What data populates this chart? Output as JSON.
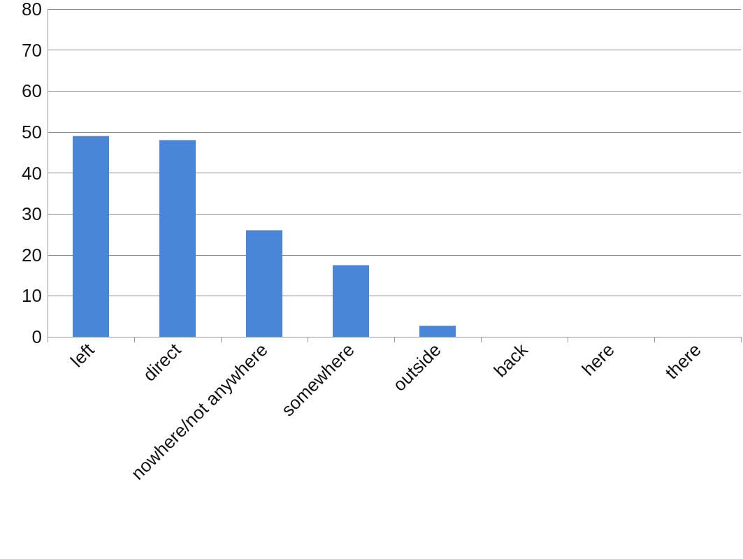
{
  "chart_data": {
    "type": "bar",
    "categories": [
      "left",
      "direct",
      "nowhere/not anywhere",
      "somewhere",
      "outside",
      "back",
      "here",
      "there"
    ],
    "values": [
      49,
      48,
      26,
      17.5,
      2.7,
      0,
      0,
      0
    ],
    "color": "#4a86d8",
    "ylim": [
      0,
      80
    ],
    "yticks": [
      0,
      10,
      20,
      30,
      40,
      50,
      60,
      70,
      80
    ],
    "grid": "y"
  }
}
